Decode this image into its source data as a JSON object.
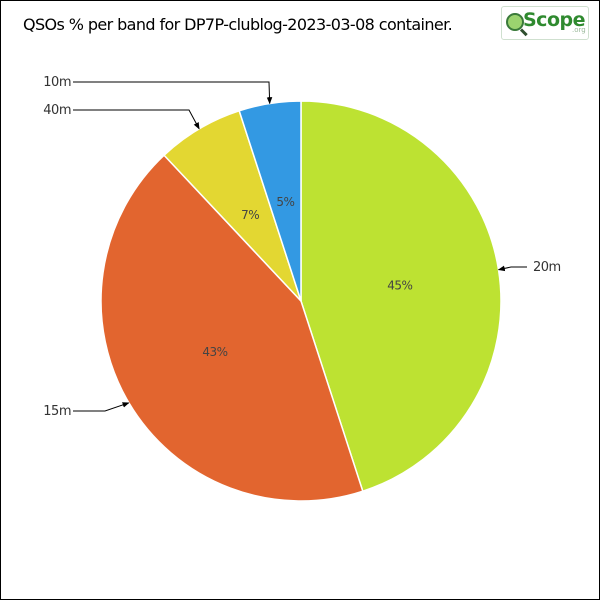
{
  "chart_data": {
    "type": "pie",
    "title": "QSOs % per band for DP7P-clublog-2023-03-08 container.",
    "slices": [
      {
        "label": "20m",
        "value": 45,
        "value_label": "45%",
        "color": "#bde232"
      },
      {
        "label": "15m",
        "value": 43,
        "value_label": "43%",
        "color": "#e2652f"
      },
      {
        "label": "40m",
        "value": 7,
        "value_label": "7%",
        "color": "#e3d732"
      },
      {
        "label": "10m",
        "value": 5,
        "value_label": "5%",
        "color": "#3399e3"
      }
    ],
    "start_angle": "12 o'clock",
    "direction": "clockwise",
    "legend": "callout labels"
  },
  "logo": {
    "text": "Scope",
    "suffix": ".org"
  }
}
